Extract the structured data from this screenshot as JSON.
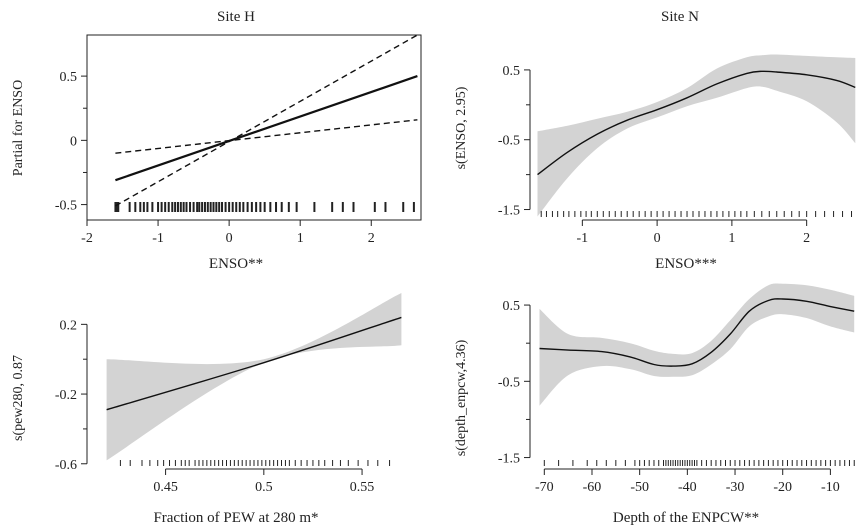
{
  "chart_data": [
    {
      "id": "p1",
      "type": "line",
      "title": "Site H",
      "xlabel": "ENSO**",
      "ylabel": "Partial for ENSO",
      "xlim": [
        -2.0,
        2.7
      ],
      "ylim": [
        -0.62,
        0.82
      ],
      "x_ticks": [
        -2,
        -1,
        0,
        1,
        2
      ],
      "x_tick_labels": [
        "-2",
        "-1",
        "0",
        "1",
        "2"
      ],
      "y_ticks": [
        -0.5,
        0,
        0.5
      ],
      "y_tick_labels": [
        "-0.5",
        "0",
        "0.5"
      ],
      "frame": true,
      "series": [
        {
          "style": "solid",
          "x": [
            -1.6,
            2.65
          ],
          "y": [
            -0.31,
            0.5
          ]
        },
        {
          "style": "dashed",
          "x": [
            -1.6,
            2.65
          ],
          "y": [
            -0.51,
            0.82
          ]
        },
        {
          "style": "dashed",
          "x": [
            -1.6,
            2.65
          ],
          "y": [
            -0.1,
            0.16
          ]
        }
      ],
      "rug": [
        -1.6,
        -1.58,
        -1.56,
        -1.4,
        -1.32,
        -1.25,
        -1.2,
        -1.15,
        -1.08,
        -1.0,
        -0.95,
        -0.9,
        -0.85,
        -0.8,
        -0.76,
        -0.72,
        -0.68,
        -0.64,
        -0.6,
        -0.55,
        -0.5,
        -0.45,
        -0.42,
        -0.38,
        -0.34,
        -0.3,
        -0.26,
        -0.22,
        -0.18,
        -0.14,
        -0.1,
        -0.05,
        0.0,
        0.05,
        0.1,
        0.15,
        0.2,
        0.26,
        0.32,
        0.38,
        0.44,
        0.5,
        0.58,
        0.66,
        0.74,
        0.84,
        0.95,
        1.2,
        1.45,
        1.6,
        1.75,
        2.05,
        2.2,
        2.45,
        2.6
      ]
    },
    {
      "id": "p2",
      "type": "line",
      "title": "Site N",
      "xlabel": "ENSO***",
      "ylabel": "s(ENSO, 2.95)",
      "xlim": [
        -1.7,
        2.7
      ],
      "ylim": [
        -1.65,
        1.0
      ],
      "x_ticks": [
        -1,
        0,
        1,
        2
      ],
      "x_tick_labels": [
        "-1",
        "0",
        "1",
        "2"
      ],
      "y_ticks": [
        -1.5,
        -0.5,
        0.5
      ],
      "y_tick_labels": [
        "-1.5",
        "-0.5",
        "0.5"
      ],
      "frame": false,
      "fit": {
        "x": [
          -1.6,
          -1.2,
          -0.8,
          -0.4,
          0.0,
          0.4,
          0.8,
          1.2,
          1.4,
          1.6,
          2.0,
          2.4,
          2.65
        ],
        "y": [
          -1.0,
          -0.68,
          -0.42,
          -0.22,
          -0.07,
          0.1,
          0.3,
          0.45,
          0.48,
          0.47,
          0.43,
          0.35,
          0.25
        ]
      },
      "band_upper": [
        -0.38,
        -0.3,
        -0.2,
        -0.1,
        0.04,
        0.24,
        0.52,
        0.68,
        0.71,
        0.72,
        0.7,
        0.68,
        0.67
      ],
      "band_lower": [
        -1.6,
        -1.05,
        -0.62,
        -0.34,
        -0.18,
        -0.02,
        0.1,
        0.24,
        0.26,
        0.2,
        0.05,
        -0.25,
        -0.55
      ],
      "rug": [
        -1.55,
        -1.48,
        -1.4,
        -1.33,
        -1.25,
        -1.18,
        -1.1,
        -1.02,
        -0.95,
        -0.88,
        -0.8,
        -0.72,
        -0.64,
        -0.56,
        -0.48,
        -0.4,
        -0.32,
        -0.24,
        -0.16,
        -0.08,
        0.0,
        0.08,
        0.16,
        0.24,
        0.32,
        0.4,
        0.48,
        0.56,
        0.64,
        0.72,
        0.8,
        0.88,
        0.96,
        1.04,
        1.12,
        1.2,
        1.3,
        1.4,
        1.5,
        1.6,
        1.7,
        1.8,
        1.9,
        2.0,
        2.12,
        2.24,
        2.36,
        2.48,
        2.6
      ]
    },
    {
      "id": "p3",
      "type": "line",
      "title": "",
      "xlabel": "Fraction of PEW at 280 m*",
      "ylabel": "s(pew280, 0.87",
      "xlim": [
        0.41,
        0.58
      ],
      "ylim": [
        -0.63,
        0.42
      ],
      "x_ticks": [
        0.45,
        0.5,
        0.55
      ],
      "x_tick_labels": [
        "0.45",
        "0.5",
        "0.55"
      ],
      "y_ticks": [
        -0.6,
        -0.2,
        0.2
      ],
      "y_tick_labels": [
        "-0.6",
        "-0.2",
        "0.2"
      ],
      "frame": false,
      "fit": {
        "x": [
          0.42,
          0.5,
          0.57
        ],
        "y": [
          -0.29,
          -0.02,
          0.24
        ]
      },
      "band_upper": [
        0.0,
        0.0,
        0.38
      ],
      "band_lower": [
        -0.58,
        -0.02,
        0.08
      ],
      "rug": [
        0.427,
        0.432,
        0.438,
        0.442,
        0.446,
        0.449,
        0.452,
        0.455,
        0.458,
        0.46,
        0.462,
        0.465,
        0.467,
        0.469,
        0.471,
        0.473,
        0.475,
        0.477,
        0.479,
        0.481,
        0.483,
        0.485,
        0.487,
        0.489,
        0.491,
        0.493,
        0.495,
        0.497,
        0.499,
        0.501,
        0.503,
        0.505,
        0.507,
        0.509,
        0.511,
        0.513,
        0.516,
        0.519,
        0.522,
        0.525,
        0.528,
        0.531,
        0.535,
        0.539,
        0.543,
        0.548,
        0.553,
        0.558,
        0.564
      ]
    },
    {
      "id": "p4",
      "type": "line",
      "title": "",
      "xlabel": "Depth of the ENPCW**",
      "ylabel": "s(depth_enpcw,4.36)",
      "xlim": [
        -73,
        -4
      ],
      "ylim": [
        -1.65,
        0.75
      ],
      "x_ticks": [
        -70,
        -60,
        -50,
        -40,
        -30,
        -20,
        -10
      ],
      "x_tick_labels": [
        "-70",
        "-60",
        "-50",
        "-40",
        "-30",
        "-20",
        "-10"
      ],
      "y_ticks": [
        -1.5,
        -0.5,
        0.5
      ],
      "y_tick_labels": [
        "-1.5",
        "-0.5",
        "0.5"
      ],
      "frame": false,
      "fit": {
        "x": [
          -71,
          -65,
          -58,
          -52,
          -47,
          -43,
          -39,
          -35,
          -31,
          -27,
          -23,
          -20,
          -15,
          -10,
          -5
        ],
        "y": [
          -0.07,
          -0.09,
          -0.11,
          -0.18,
          -0.28,
          -0.3,
          -0.27,
          -0.12,
          0.12,
          0.42,
          0.56,
          0.58,
          0.55,
          0.48,
          0.42
        ]
      },
      "band_upper": [
        0.45,
        0.12,
        0.07,
        0.0,
        -0.1,
        -0.14,
        -0.13,
        0.03,
        0.3,
        0.58,
        0.76,
        0.78,
        0.76,
        0.7,
        0.62
      ],
      "band_lower": [
        -0.82,
        -0.42,
        -0.3,
        -0.34,
        -0.43,
        -0.44,
        -0.42,
        -0.28,
        -0.08,
        0.22,
        0.35,
        0.38,
        0.33,
        0.22,
        0.14
      ],
      "rug": [
        -70,
        -67,
        -64,
        -61,
        -59,
        -57,
        -55,
        -53,
        -51,
        -50,
        -49,
        -48,
        -47,
        -46,
        -45,
        -44.5,
        -44,
        -43.5,
        -43,
        -42.5,
        -42,
        -41.5,
        -41,
        -40.5,
        -40,
        -39.5,
        -39,
        -38.5,
        -38,
        -37,
        -36,
        -35,
        -34,
        -33,
        -32,
        -31,
        -30,
        -29,
        -28,
        -27,
        -26,
        -25,
        -24,
        -23,
        -22,
        -21,
        -20,
        -19,
        -18,
        -17,
        -16,
        -15,
        -14,
        -13,
        -12,
        -11,
        -10,
        -9,
        -8,
        -7,
        -6,
        -5
      ]
    }
  ]
}
